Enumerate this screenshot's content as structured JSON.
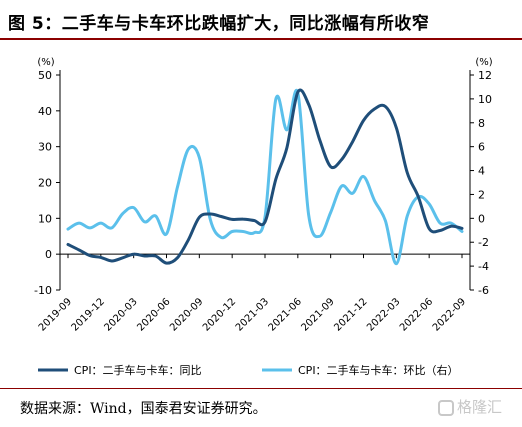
{
  "header": {
    "title": "图 5：二手车与卡车环比跌幅扩大，同比涨幅有所收窄"
  },
  "footer": {
    "source": "数据来源：Wind，国泰君安证券研究。",
    "watermark": "格隆汇"
  },
  "chart_data": {
    "type": "line",
    "x_tick_labels": [
      "2019-09",
      "2019-12",
      "2020-03",
      "2020-06",
      "2020-09",
      "2020-12",
      "2021-03",
      "2021-06",
      "2021-09",
      "2021-12",
      "2022-03",
      "2022-06",
      "2022-09"
    ],
    "y_left": {
      "unit": "(%)",
      "range": [
        -10,
        50
      ],
      "ticks": [
        -10,
        0,
        10,
        20,
        30,
        40,
        50
      ]
    },
    "y_right": {
      "unit": "(%)",
      "range": [
        -6,
        12
      ],
      "ticks": [
        -6,
        -4,
        -2,
        0,
        2,
        4,
        6,
        8,
        10,
        12
      ]
    },
    "colors": {
      "yoy": "#1f4e79",
      "mom": "#5bc0eb"
    },
    "legend_position": "bottom",
    "series": [
      {
        "name": "CPI：二手车与卡车：同比",
        "axis": "left",
        "x": [
          "2019-09",
          "2019-10",
          "2019-11",
          "2019-12",
          "2020-01",
          "2020-02",
          "2020-03",
          "2020-04",
          "2020-05",
          "2020-06",
          "2020-07",
          "2020-08",
          "2020-09",
          "2020-10",
          "2020-11",
          "2020-12",
          "2021-01",
          "2021-02",
          "2021-03",
          "2021-04",
          "2021-05",
          "2021-06",
          "2021-07",
          "2021-08",
          "2021-09",
          "2021-10",
          "2021-11",
          "2021-12",
          "2022-01",
          "2022-02",
          "2022-03",
          "2022-04",
          "2022-05",
          "2022-06",
          "2022-07",
          "2022-08",
          "2022-09"
        ],
        "values": [
          2.7,
          1.2,
          -0.4,
          -0.9,
          -1.9,
          -1.0,
          0.0,
          -0.5,
          -0.5,
          -2.5,
          -1.0,
          4.0,
          10.3,
          11.2,
          10.5,
          9.7,
          9.8,
          9.4,
          9.0,
          21.0,
          29.7,
          45.2,
          41.7,
          31.9,
          24.4,
          26.4,
          31.4,
          37.3,
          40.5,
          41.2,
          35.3,
          22.7,
          16.1,
          7.1,
          6.6,
          7.8,
          7.2
        ]
      },
      {
        "name": "CPI：二手车与卡车：环比（右）",
        "axis": "right",
        "x": [
          "2019-09",
          "2019-10",
          "2019-11",
          "2019-12",
          "2020-01",
          "2020-02",
          "2020-03",
          "2020-04",
          "2020-05",
          "2020-06",
          "2020-07",
          "2020-08",
          "2020-09",
          "2020-10",
          "2020-11",
          "2020-12",
          "2021-01",
          "2021-02",
          "2021-03",
          "2021-04",
          "2021-05",
          "2021-06",
          "2021-07",
          "2021-08",
          "2021-09",
          "2021-10",
          "2021-11",
          "2021-12",
          "2022-01",
          "2022-02",
          "2022-03",
          "2022-04",
          "2022-05",
          "2022-06",
          "2022-07",
          "2022-08",
          "2022-09"
        ],
        "values": [
          -0.9,
          -0.4,
          -0.8,
          -0.4,
          -0.8,
          0.4,
          0.9,
          -0.3,
          0.2,
          -1.3,
          2.6,
          5.8,
          5.1,
          -0.1,
          -1.6,
          -1.1,
          -1.1,
          -1.2,
          0.1,
          10.0,
          7.4,
          10.5,
          0.2,
          -1.5,
          0.5,
          2.7,
          2.1,
          3.5,
          1.5,
          -0.2,
          -3.8,
          0.2,
          1.8,
          1.2,
          -0.4,
          -0.4,
          -1.1
        ]
      }
    ]
  }
}
